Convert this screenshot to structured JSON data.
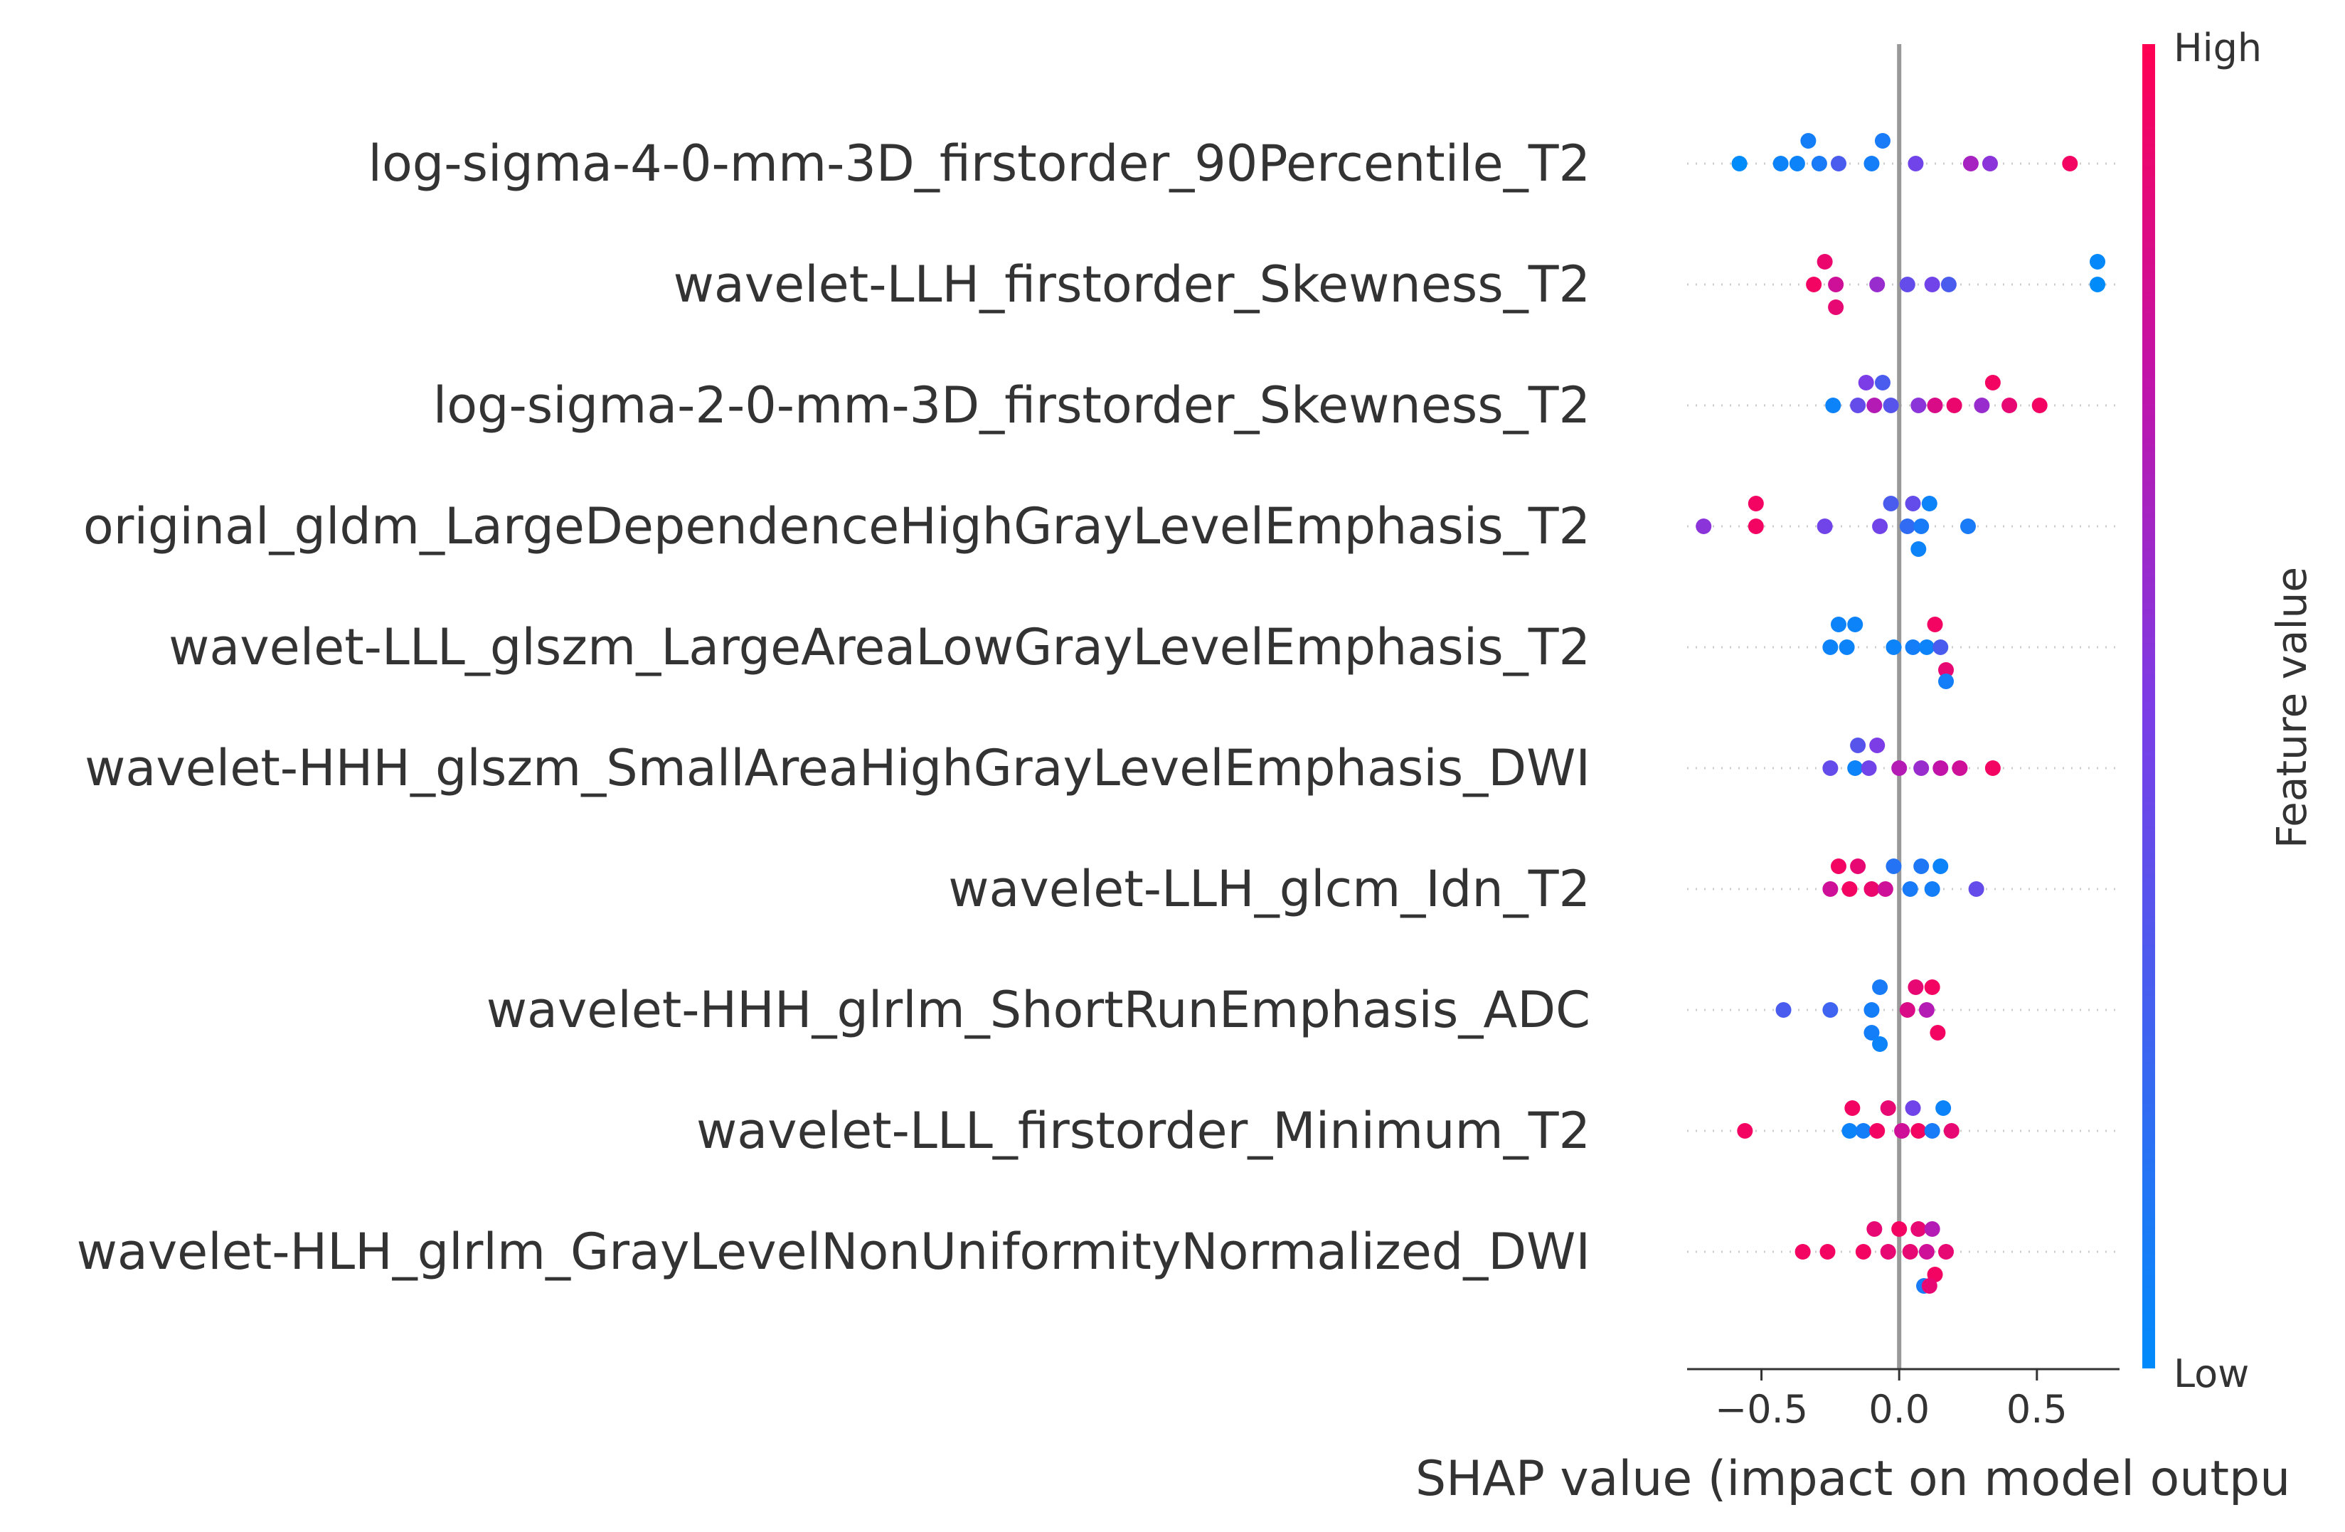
{
  "chart_data": {
    "type": "scatter",
    "plot_kind": "shap-summary-beeswarm",
    "xlabel": "SHAP value (impact on model outpu",
    "xlim": [
      -0.77,
      0.8
    ],
    "xticks": [
      {
        "value": -0.5,
        "label": "−0.5"
      },
      {
        "value": 0.0,
        "label": "0.0"
      },
      {
        "value": 0.5,
        "label": "0.5"
      }
    ],
    "zero_line": true,
    "grid": false,
    "colorbar": {
      "title": "Feature value",
      "high_label": "High",
      "low_label": "Low",
      "low_color": "#008bfb",
      "high_color": "#ff0052"
    },
    "features": [
      {
        "name": "log-sigma-4-0-mm-3D_firstorder_90Percentile_T2",
        "points": [
          [
            -0.58,
            0.0
          ],
          [
            -0.43,
            0.05
          ],
          [
            -0.37,
            0.05
          ],
          [
            -0.33,
            0.08
          ],
          [
            -0.29,
            0.1
          ],
          [
            -0.22,
            0.3
          ],
          [
            -0.1,
            0.08
          ],
          [
            -0.06,
            0.1
          ],
          [
            0.06,
            0.45
          ],
          [
            0.26,
            0.65
          ],
          [
            0.33,
            0.55
          ],
          [
            0.62,
            0.95
          ]
        ]
      },
      {
        "name": "wavelet-LLH_firstorder_Skewness_T2",
        "points": [
          [
            0.72,
            0.0
          ],
          [
            0.72,
            0.02
          ],
          [
            -0.23,
            0.8
          ],
          [
            -0.31,
            0.95
          ],
          [
            -0.27,
            0.92
          ],
          [
            -0.23,
            0.9
          ],
          [
            -0.08,
            0.6
          ],
          [
            0.03,
            0.4
          ],
          [
            0.12,
            0.45
          ],
          [
            0.18,
            0.3
          ]
        ]
      },
      {
        "name": "log-sigma-2-0-mm-3D_firstorder_Skewness_T2",
        "points": [
          [
            -0.24,
            0.05
          ],
          [
            -0.15,
            0.4
          ],
          [
            -0.12,
            0.5
          ],
          [
            -0.09,
            0.7
          ],
          [
            -0.06,
            0.3
          ],
          [
            -0.03,
            0.35
          ],
          [
            0.07,
            0.55
          ],
          [
            0.13,
            0.85
          ],
          [
            0.2,
            0.92
          ],
          [
            0.3,
            0.6
          ],
          [
            0.34,
            0.95
          ],
          [
            0.4,
            0.9
          ],
          [
            0.51,
            0.95
          ]
        ]
      },
      {
        "name": "original_gldm_LargeDependenceHighGrayLevelEmphasis_T2",
        "points": [
          [
            -0.71,
            0.55
          ],
          [
            -0.52,
            0.95
          ],
          [
            -0.52,
            0.95
          ],
          [
            -0.27,
            0.45
          ],
          [
            -0.07,
            0.45
          ],
          [
            -0.03,
            0.3
          ],
          [
            0.03,
            0.2
          ],
          [
            0.08,
            0.1
          ],
          [
            0.11,
            0.05
          ],
          [
            0.05,
            0.4
          ],
          [
            0.07,
            0.05
          ],
          [
            0.25,
            0.1
          ]
        ]
      },
      {
        "name": "wavelet-LLL_glszm_LargeAreaLowGrayLevelEmphasis_T2",
        "points": [
          [
            -0.25,
            0.05
          ],
          [
            -0.22,
            0.05
          ],
          [
            -0.19,
            0.05
          ],
          [
            -0.16,
            0.05
          ],
          [
            -0.02,
            0.05
          ],
          [
            0.05,
            0.08
          ],
          [
            0.1,
            0.05
          ],
          [
            0.15,
            0.3
          ],
          [
            0.13,
            0.95
          ],
          [
            0.17,
            0.9
          ],
          [
            0.17,
            0.08
          ]
        ]
      },
      {
        "name": "wavelet-HHH_glszm_SmallAreaHighGrayLevelEmphasis_DWI",
        "points": [
          [
            -0.16,
            0.05
          ],
          [
            -0.25,
            0.4
          ],
          [
            -0.15,
            0.35
          ],
          [
            -0.11,
            0.45
          ],
          [
            -0.08,
            0.5
          ],
          [
            0.0,
            0.7
          ],
          [
            0.08,
            0.6
          ],
          [
            0.15,
            0.75
          ],
          [
            0.22,
            0.8
          ],
          [
            0.34,
            0.95
          ]
        ]
      },
      {
        "name": "wavelet-LLH_glcm_Idn_T2",
        "points": [
          [
            -0.25,
            0.8
          ],
          [
            -0.22,
            0.95
          ],
          [
            -0.18,
            0.95
          ],
          [
            -0.15,
            0.9
          ],
          [
            -0.1,
            0.92
          ],
          [
            -0.05,
            0.8
          ],
          [
            -0.02,
            0.15
          ],
          [
            0.04,
            0.1
          ],
          [
            0.08,
            0.12
          ],
          [
            0.12,
            0.08
          ],
          [
            0.15,
            0.05
          ],
          [
            0.28,
            0.4
          ]
        ]
      },
      {
        "name": "wavelet-HHH_glrlm_ShortRunEmphasis_ADC",
        "points": [
          [
            -0.42,
            0.3
          ],
          [
            -0.25,
            0.25
          ],
          [
            -0.1,
            0.08
          ],
          [
            -0.07,
            0.1
          ],
          [
            -0.1,
            0.08
          ],
          [
            -0.07,
            0.05
          ],
          [
            0.03,
            0.85
          ],
          [
            0.06,
            0.9
          ],
          [
            0.1,
            0.7
          ],
          [
            0.12,
            0.95
          ],
          [
            0.14,
            0.95
          ]
        ]
      },
      {
        "name": "wavelet-LLL_firstorder_Minimum_T2",
        "points": [
          [
            -0.56,
            0.95
          ],
          [
            -0.18,
            0.05
          ],
          [
            -0.13,
            0.08
          ],
          [
            -0.17,
            0.95
          ],
          [
            -0.08,
            0.95
          ],
          [
            -0.04,
            0.9
          ],
          [
            0.01,
            0.8
          ],
          [
            0.05,
            0.45
          ],
          [
            0.07,
            0.95
          ],
          [
            0.12,
            0.1
          ],
          [
            0.16,
            0.05
          ],
          [
            0.19,
            0.9
          ]
        ]
      },
      {
        "name": "wavelet-HLH_glrlm_GrayLevelNonUniformityNormalized_DWI",
        "points": [
          [
            -0.35,
            0.95
          ],
          [
            -0.26,
            0.95
          ],
          [
            -0.13,
            0.95
          ],
          [
            -0.09,
            0.9
          ],
          [
            -0.04,
            0.9
          ],
          [
            0.0,
            0.95
          ],
          [
            0.04,
            0.9
          ],
          [
            0.07,
            0.9
          ],
          [
            0.1,
            0.8
          ],
          [
            0.12,
            0.7
          ],
          [
            0.13,
            0.95
          ],
          [
            0.17,
            0.9
          ],
          [
            0.09,
            0.1
          ],
          [
            0.11,
            0.9
          ]
        ]
      }
    ]
  }
}
